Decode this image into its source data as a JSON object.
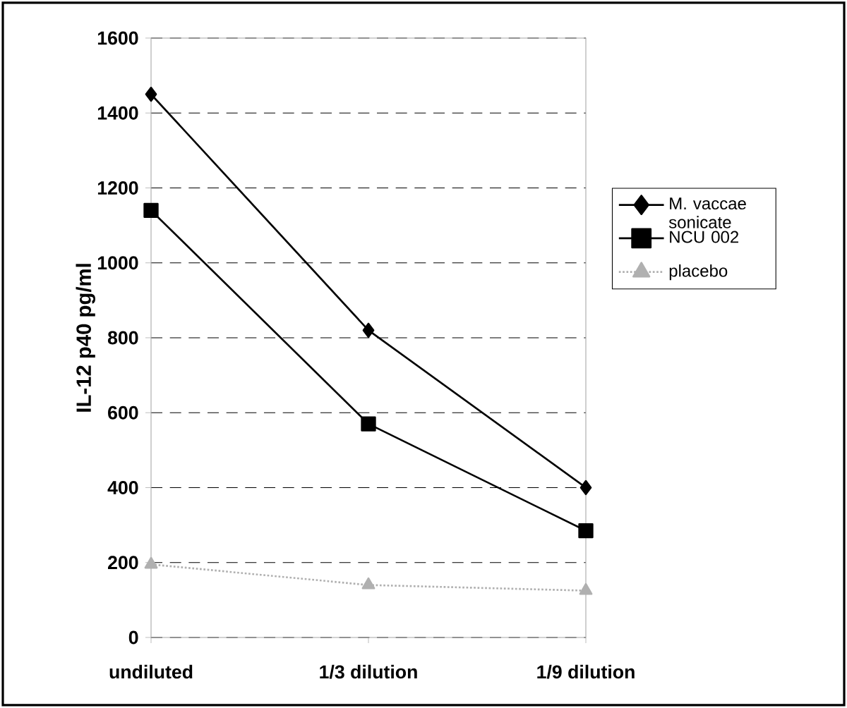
{
  "chart_data": {
    "type": "line",
    "ylabel": "IL-12 p40  pg/ml",
    "categories": [
      "undiluted",
      "1/3 dilution",
      "1/9 dilution"
    ],
    "series": [
      {
        "name": "M. vaccae sonicate",
        "color": "#000000",
        "values": [
          1450,
          820,
          400
        ],
        "marker": "diamond",
        "line_style": "solid"
      },
      {
        "name": "NCU 002",
        "color": "#000000",
        "values": [
          1140,
          570,
          285
        ],
        "marker": "square",
        "line_style": "solid"
      },
      {
        "name": "placebo",
        "color": "#b0b0b0",
        "values": [
          195,
          140,
          125
        ],
        "marker": "triangle",
        "line_style": "dotted"
      }
    ],
    "ylim": [
      0,
      1600
    ],
    "yticks": [
      0,
      200,
      400,
      600,
      800,
      1000,
      1200,
      1400,
      1600
    ],
    "grid": "y",
    "legend": "right"
  }
}
